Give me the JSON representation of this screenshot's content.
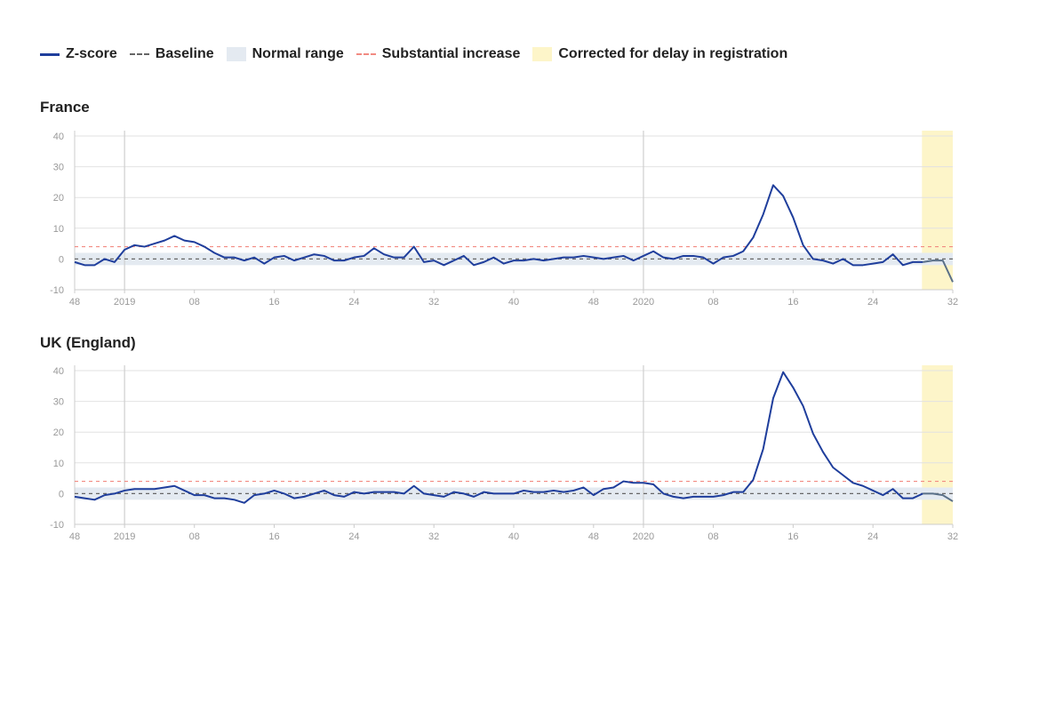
{
  "legend": {
    "zscore": "Z-score",
    "baseline": "Baseline",
    "normal_range": "Normal range",
    "substantial": "Substantial increase",
    "corrected": "Corrected for delay in registration"
  },
  "colors": {
    "zscore": "#1f3e9c",
    "zscore_corrected": "#5a7088",
    "baseline": "#666666",
    "normal_range": "#e4eaf1",
    "substantial": "#f28b82",
    "corrected": "#fdf5c9",
    "grid": "#e2e2e2",
    "year_line": "#cfcfcf"
  },
  "chart_data": [
    {
      "type": "line",
      "title": "France",
      "ylim": [
        -10,
        40
      ],
      "yticks": [
        40,
        30,
        20,
        10,
        0,
        -10
      ],
      "xticks": [
        {
          "i": 0,
          "label": "48"
        },
        {
          "i": 5,
          "label": "2019"
        },
        {
          "i": 12,
          "label": "08"
        },
        {
          "i": 20,
          "label": "16"
        },
        {
          "i": 28,
          "label": "24"
        },
        {
          "i": 36,
          "label": "32"
        },
        {
          "i": 44,
          "label": "40"
        },
        {
          "i": 52,
          "label": "48"
        },
        {
          "i": 57,
          "label": "2020"
        },
        {
          "i": 64,
          "label": "08"
        },
        {
          "i": 72,
          "label": "16"
        },
        {
          "i": 80,
          "label": "24"
        },
        {
          "i": 88,
          "label": "32"
        }
      ],
      "year_lines": [
        5,
        57
      ],
      "baseline": 0,
      "normal_range": [
        -2,
        2
      ],
      "substantial": 4,
      "corrected_from": 85,
      "values": [
        -1,
        -2,
        -2,
        0,
        -1,
        3,
        4.5,
        4,
        5,
        6,
        7.5,
        6,
        5.5,
        4,
        2,
        0.5,
        0.5,
        -0.5,
        0.5,
        -1.5,
        0.5,
        1,
        -0.5,
        0.5,
        1.5,
        1,
        -0.5,
        -0.5,
        0.5,
        1,
        3.5,
        1.5,
        0.5,
        0.5,
        4,
        -1,
        -0.5,
        -2,
        -0.5,
        1,
        -2,
        -1,
        0.5,
        -1.5,
        -0.5,
        -0.5,
        0,
        -0.5,
        0,
        0.5,
        0.5,
        1,
        0.5,
        0,
        0.5,
        1,
        -0.5,
        1,
        2.5,
        0.5,
        0,
        1,
        1,
        0.5,
        -1.5,
        0.5,
        1,
        2.5,
        7,
        14.5,
        24,
        20.5,
        13.5,
        4.5,
        0,
        -0.5,
        -1.5,
        0,
        -2,
        -2,
        -1.5,
        -1,
        1.5,
        -2,
        -1,
        -1,
        -0.5,
        -0.5,
        -7.5
      ]
    },
    {
      "type": "line",
      "title": "UK (England)",
      "ylim": [
        -10,
        40
      ],
      "yticks": [
        40,
        30,
        20,
        10,
        0,
        -10
      ],
      "xticks": [
        {
          "i": 0,
          "label": "48"
        },
        {
          "i": 5,
          "label": "2019"
        },
        {
          "i": 12,
          "label": "08"
        },
        {
          "i": 20,
          "label": "16"
        },
        {
          "i": 28,
          "label": "24"
        },
        {
          "i": 36,
          "label": "32"
        },
        {
          "i": 44,
          "label": "40"
        },
        {
          "i": 52,
          "label": "48"
        },
        {
          "i": 57,
          "label": "2020"
        },
        {
          "i": 64,
          "label": "08"
        },
        {
          "i": 72,
          "label": "16"
        },
        {
          "i": 80,
          "label": "24"
        },
        {
          "i": 88,
          "label": "32"
        }
      ],
      "year_lines": [
        5,
        57
      ],
      "baseline": 0,
      "normal_range": [
        -2,
        2
      ],
      "substantial": 4,
      "corrected_from": 85,
      "values": [
        -1,
        -1.5,
        -2,
        -0.5,
        0,
        1,
        1.5,
        1.5,
        1.5,
        2,
        2.5,
        1,
        -0.5,
        -0.5,
        -1.5,
        -1.5,
        -2,
        -3,
        -0.5,
        0,
        1,
        0,
        -1.5,
        -1,
        0,
        1,
        -0.5,
        -1,
        0.5,
        0,
        0.5,
        0.5,
        0.5,
        0,
        2.5,
        0,
        -0.5,
        -1,
        0.5,
        0,
        -1,
        0.5,
        0,
        0,
        0,
        1,
        0.5,
        0.5,
        1,
        0.5,
        1,
        2,
        -0.5,
        1.5,
        2,
        4,
        3.5,
        3.5,
        3,
        0,
        -1,
        -1.5,
        -1,
        -1,
        -1,
        -0.5,
        0.5,
        0.5,
        4.5,
        14.5,
        31,
        39.5,
        34.5,
        28.5,
        19.5,
        13.5,
        8.5,
        6,
        3.5,
        2.5,
        1,
        -0.5,
        1.5,
        -1.5,
        -1.5,
        0,
        0,
        -0.5,
        -2.5
      ]
    }
  ]
}
